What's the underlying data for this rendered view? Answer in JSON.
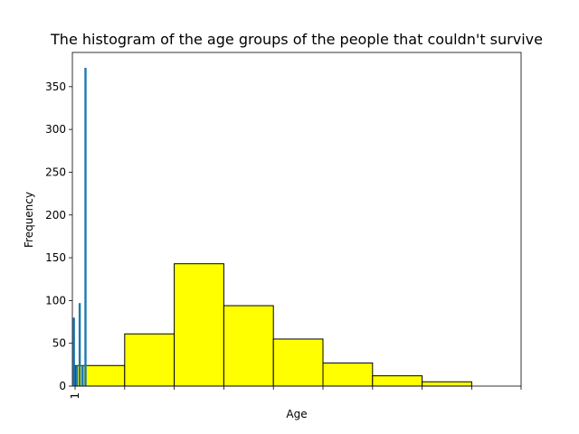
{
  "chart_data": {
    "type": "bar",
    "title": "The histogram of the age groups of the people that couldn't survive",
    "xlabel": "Age",
    "ylabel": "Frequency",
    "ylim": [
      0,
      390
    ],
    "yticks": [
      0,
      50,
      100,
      150,
      200,
      250,
      300,
      350
    ],
    "xtick_labels": [
      "1",
      "",
      "",
      "",
      "",
      "",
      "",
      "",
      "",
      ""
    ],
    "grid": false,
    "histogram": {
      "name": "",
      "color": "#ffff00",
      "edgecolor": "#000000",
      "values": [
        24,
        61,
        143,
        94,
        55,
        27,
        12,
        5,
        0
      ]
    },
    "blue_bars": {
      "color": "#1f77b4",
      "values": [
        80,
        24,
        97,
        24,
        372
      ]
    }
  }
}
